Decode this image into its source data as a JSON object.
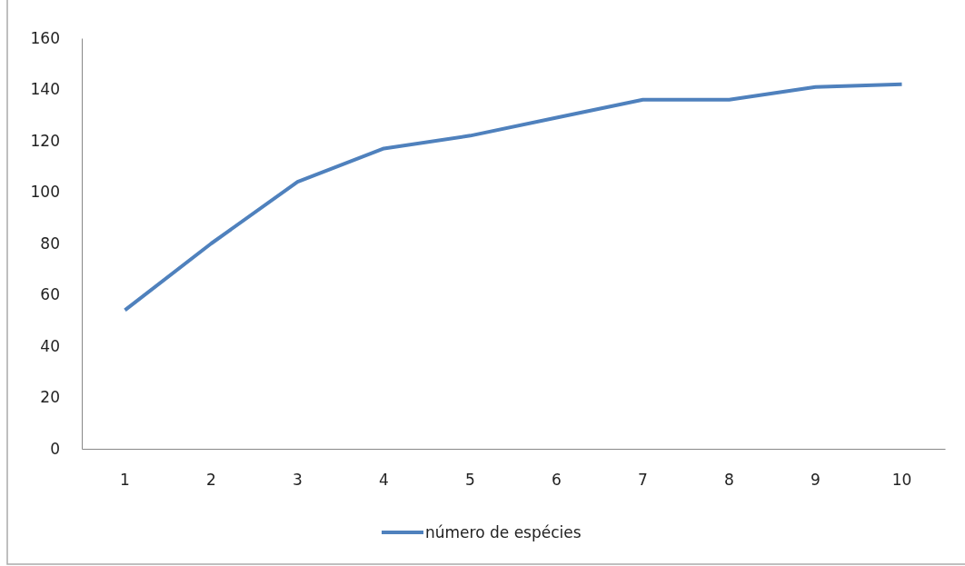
{
  "chart_data": {
    "type": "line",
    "categories": [
      "1",
      "2",
      "3",
      "4",
      "5",
      "6",
      "7",
      "8",
      "9",
      "10"
    ],
    "series": [
      {
        "name": "número de espécies",
        "color": "#4f81bd",
        "values": [
          54,
          80,
          104,
          117,
          122,
          129,
          136,
          136,
          141,
          142
        ]
      }
    ],
    "ylim": [
      0,
      160
    ],
    "yticks": [
      0,
      20,
      40,
      60,
      80,
      100,
      120,
      140,
      160
    ],
    "grid": false,
    "legend": "bottom",
    "marker": "none",
    "line_style": "solid"
  }
}
